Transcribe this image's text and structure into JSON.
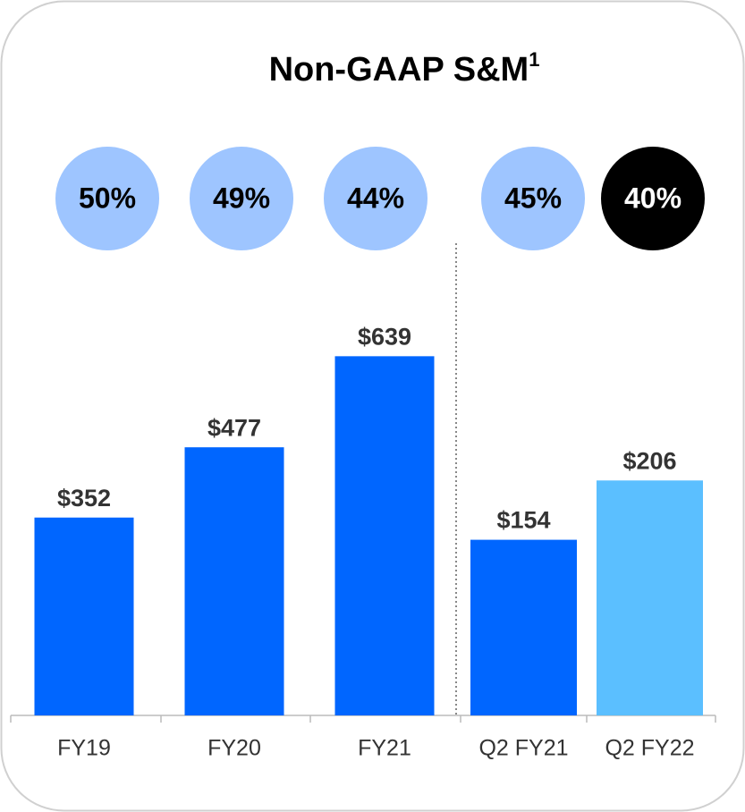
{
  "title": "Non-GAAP S&M",
  "title_superscript": "1",
  "chart_data": [
    {
      "type": "bar",
      "categories": [
        "FY19",
        "FY20",
        "FY21"
      ],
      "values": [
        352,
        477,
        639
      ],
      "value_labels": [
        "$352",
        "$477",
        "$639"
      ],
      "colors": [
        "#0066ff",
        "#0066ff",
        "#0066ff"
      ],
      "ylim": [
        0,
        700
      ],
      "badges": {
        "values": [
          50,
          49,
          44
        ],
        "value_labels": [
          "50%",
          "49%",
          "44%"
        ],
        "colors": [
          "#9ec5ff",
          "#9ec5ff",
          "#9ec5ff"
        ],
        "text_colors": [
          "#000000",
          "#000000",
          "#000000"
        ]
      }
    },
    {
      "type": "bar",
      "categories": [
        "Q2 FY21",
        "Q2 FY22"
      ],
      "values": [
        154,
        206
      ],
      "value_labels": [
        "$154",
        "$206"
      ],
      "colors": [
        "#0066ff",
        "#5bbfff"
      ],
      "ylim": [
        0,
        345
      ],
      "badges": {
        "values": [
          45,
          40
        ],
        "value_labels": [
          "45%",
          "40%"
        ],
        "colors": [
          "#9ec5ff",
          "#000000"
        ],
        "text_colors": [
          "#000000",
          "#ffffff"
        ]
      }
    }
  ]
}
